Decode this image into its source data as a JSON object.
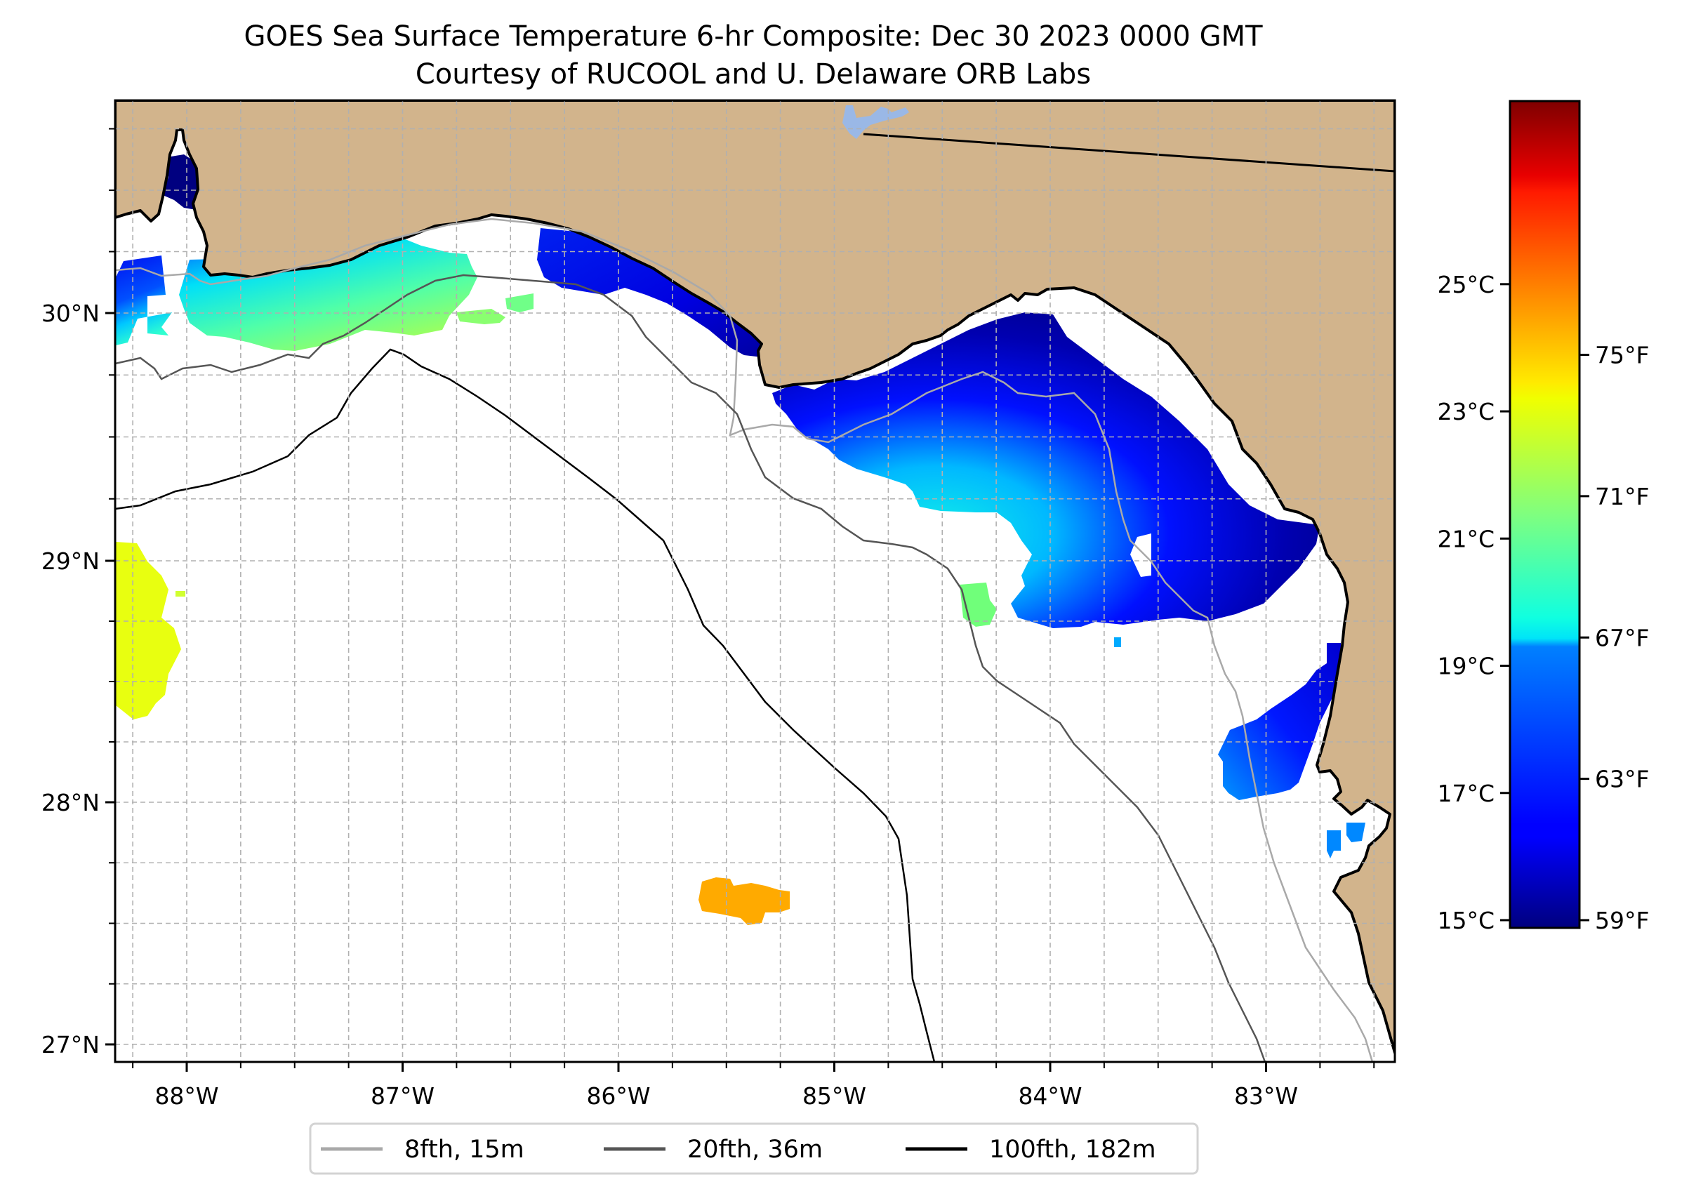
{
  "chart_data": {
    "type": "heatmap",
    "title": "GOES Sea Surface Temperature 6-hr Composite: Dec 30 2023 0000 GMT",
    "subtitle": "Courtesy of RUCOOL and U. Delaware ORB Labs",
    "map_extent": {
      "lon_range": [
        -88.33,
        -82.4
      ],
      "lat_range": [
        26.93,
        30.85
      ]
    },
    "grid": true,
    "grid_spacing_deg": 0.25,
    "x_ticks": [
      {
        "value": -88,
        "label": "88°W"
      },
      {
        "value": -87,
        "label": "87°W"
      },
      {
        "value": -86,
        "label": "86°W"
      },
      {
        "value": -85,
        "label": "85°W"
      },
      {
        "value": -84,
        "label": "84°W"
      },
      {
        "value": -83,
        "label": "83°W"
      }
    ],
    "y_ticks": [
      {
        "value": 30,
        "label": "30°N"
      },
      {
        "value": 29,
        "label": "29°N"
      },
      {
        "value": 28,
        "label": "28°N"
      },
      {
        "value": 27,
        "label": "27°N"
      }
    ],
    "colorbar": {
      "colormap": "jet",
      "range_c": [
        15,
        28
      ],
      "celsius_ticks": [
        {
          "value": 25,
          "label": "25°C"
        },
        {
          "value": 23,
          "label": "23°C"
        },
        {
          "value": 21,
          "label": "21°C"
        },
        {
          "value": 19,
          "label": "19°C"
        },
        {
          "value": 17,
          "label": "17°C"
        },
        {
          "value": 15,
          "label": "15°C"
        }
      ],
      "fahrenheit_ticks": [
        {
          "value": 75,
          "label": "75°F"
        },
        {
          "value": 71,
          "label": "71°F"
        },
        {
          "value": 67,
          "label": "67°F"
        },
        {
          "value": 63,
          "label": "63°F"
        },
        {
          "value": 59,
          "label": "59°F"
        }
      ]
    },
    "legend": {
      "placement": "bottom-center",
      "entries": [
        {
          "label": "8fth, 15m",
          "color": "#a9a9a9"
        },
        {
          "label": "20fth, 36m",
          "color": "#555555"
        },
        {
          "label": "100fth, 182m",
          "color": "#000000"
        }
      ]
    },
    "sst_patches": [
      {
        "name": "mobile-bay",
        "approx_lon": -87.98,
        "approx_lat": 30.6,
        "temp_c": 15.2
      },
      {
        "name": "alabama-mississippi-shelf",
        "approx_lon": -87.6,
        "approx_lat": 30.1,
        "temp_c_range": [
          16.5,
          19.5
        ]
      },
      {
        "name": "desoto-canyon-shelf",
        "approx_lon": -86.9,
        "approx_lat": 30.1,
        "temp_c_range": [
          18.5,
          20.5
        ]
      },
      {
        "name": "panhandle-nearshore",
        "approx_lon": -85.8,
        "approx_lat": 30.15,
        "temp_c_range": [
          15.5,
          17
        ]
      },
      {
        "name": "big-bend-apalachee",
        "approx_lon": -84.0,
        "approx_lat": 29.5,
        "temp_c_range": [
          15,
          19
        ]
      },
      {
        "name": "west-edge-offshore",
        "approx_lon": -88.25,
        "approx_lat": 28.75,
        "temp_c": 21.7
      },
      {
        "name": "cedar-key-offshore",
        "approx_lon": -84.4,
        "approx_lat": 28.85,
        "temp_c": 20
      },
      {
        "name": "tampa-offshore",
        "approx_lon": -83.05,
        "approx_lat": 28.1,
        "temp_c_range": [
          16.3,
          17.5
        ]
      },
      {
        "name": "tampa-bay-mouth",
        "approx_lon": -82.65,
        "approx_lat": 27.65,
        "temp_c": 17.7
      },
      {
        "name": "offshore-warm-eddy",
        "approx_lon": -85.4,
        "approx_lat": 27.6,
        "temp_c": 23.2
      }
    ]
  },
  "colors": {
    "land": "#d2b48c",
    "ocean_nodata": "#ffffff",
    "lake": "#9ab8e6",
    "gridline": "#b0b0b0"
  }
}
